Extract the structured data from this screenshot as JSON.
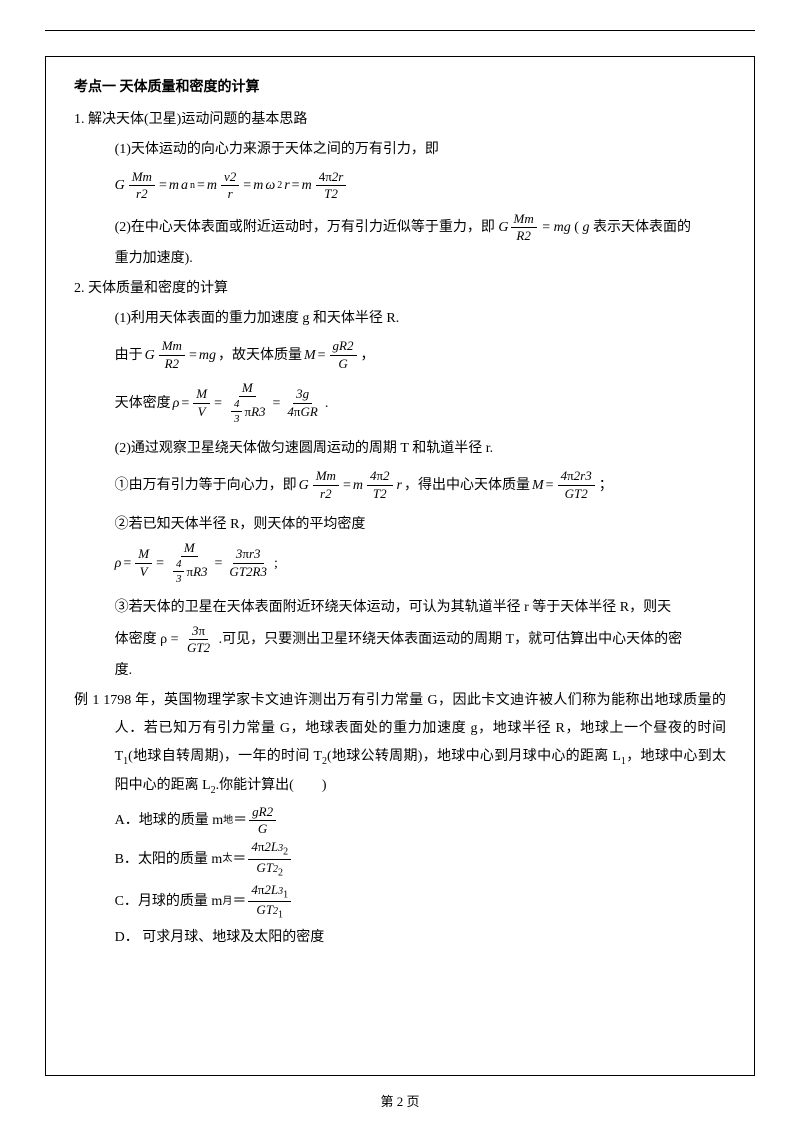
{
  "topic_title": "考点一  天体质量和密度的计算",
  "sec1": {
    "h": "1.  解决天体(卫星)运动问题的基本思路",
    "p1": "(1)天体运动的向心力来源于天体之间的万有引力，即",
    "p2_a": "(2)在中心天体表面或附近运动时，万有引力近似等于重力，即 ",
    "p2_b": " = ",
    "p2_c": "(",
    "p2_d": " 表示天体表面的",
    "p2_e": "重力加速度)."
  },
  "sec2": {
    "h": "2.  天体质量和密度的计算",
    "p1": "(1)利用天体表面的重力加速度 g 和天体半径 R.",
    "f1_a": "由于 ",
    "f1_b": " = ",
    "f1_c": "，故天体质量 ",
    "f1_d": " = ",
    "f1_e": "，",
    "rho_a": "天体密度 ",
    "rho_b": " = ",
    "rho_c": " = ",
    "rho_d": " = ",
    "rho_e": ".",
    "p2": "(2)通过观察卫星绕天体做匀速圆周运动的周期 T 和轨道半径 r.",
    "c1_a": "①由万有引力等于向心力，即 ",
    "c1_b": " = ",
    "c1_c": "，得出中心天体质量 ",
    "c1_d": " = ",
    "c1_e": "；",
    "c2": "②若已知天体半径 R，则天体的平均密度",
    "c3_a": "③若天体的卫星在天体表面附近环绕天体运动，可认为其轨道半径 r 等于天体半径 R，则天",
    "c3_b": "体密度 ρ = ",
    "c3_c": ".可见，只要测出卫星环绕天体表面运动的周期 T，就可估算出中心天体的密",
    "c3_d": "度."
  },
  "example": {
    "label": "例 1  ",
    "text": "1798 年，英国物理学家卡文迪许测出万有引力常量 G，因此卡文迪许被人们称为能称出地球质量的人．若已知万有引力常量 G，地球表面处的重力加速度 g，地球半径 R，地球上一个昼夜的时间 T",
    "t1_after": "(地球自转周期)，一年的时间 T",
    "t2_after": "(地球公转周期)，地球中心到月球中心的距离 L",
    "l1_after": "，地球中心到太阳中心的距离 L",
    "l2_after": ".你能计算出(　　)",
    "optA_a": "A．",
    "optA_b": "地球的质量 m",
    "optA_c": "＝",
    "optB_a": "B．",
    "optB_b": "太阳的质量 m",
    "optB_c": "＝",
    "optC_a": "C．",
    "optC_b": "月球的质量 m",
    "optC_c": "＝",
    "optD": "D．  可求月球、地球及太阳的密度"
  },
  "sym": {
    "G": "G",
    "M": "M",
    "m": "m",
    "r": "r",
    "R": "R",
    "v": "v",
    "T": "T",
    "g": "g",
    "L": "L",
    "a": "a",
    "n": "n",
    "lowm": "m",
    "omega": "ω",
    "pi": "π",
    "rho": "ρ",
    "earth": "地",
    "sun": "太",
    "moon": "月",
    "V": "V",
    "Mm": "Mm",
    "r2": "r2",
    "v2": "v2",
    "T2": "T2",
    "R2": "R2",
    "fourpi2r": "4π2r",
    "fourpi2": "4π2",
    "gR2": "gR2",
    "fourthirds_num": "4",
    "fourthirds_den": "3",
    "piR3": "πR3",
    "threeg": "3g",
    "fourpiGR": "4πGR",
    "threepir3": "3πr3",
    "GT2R3": "GT2R3",
    "fourpi2r3": "4π2r3",
    "GT2": "GT2",
    "threepi": "3π",
    "fourpi2L3": "4π2L3",
    "GT2b": "GT2",
    "GT1b": "GT2",
    "mg": "mg"
  },
  "footer": "第 2 页"
}
